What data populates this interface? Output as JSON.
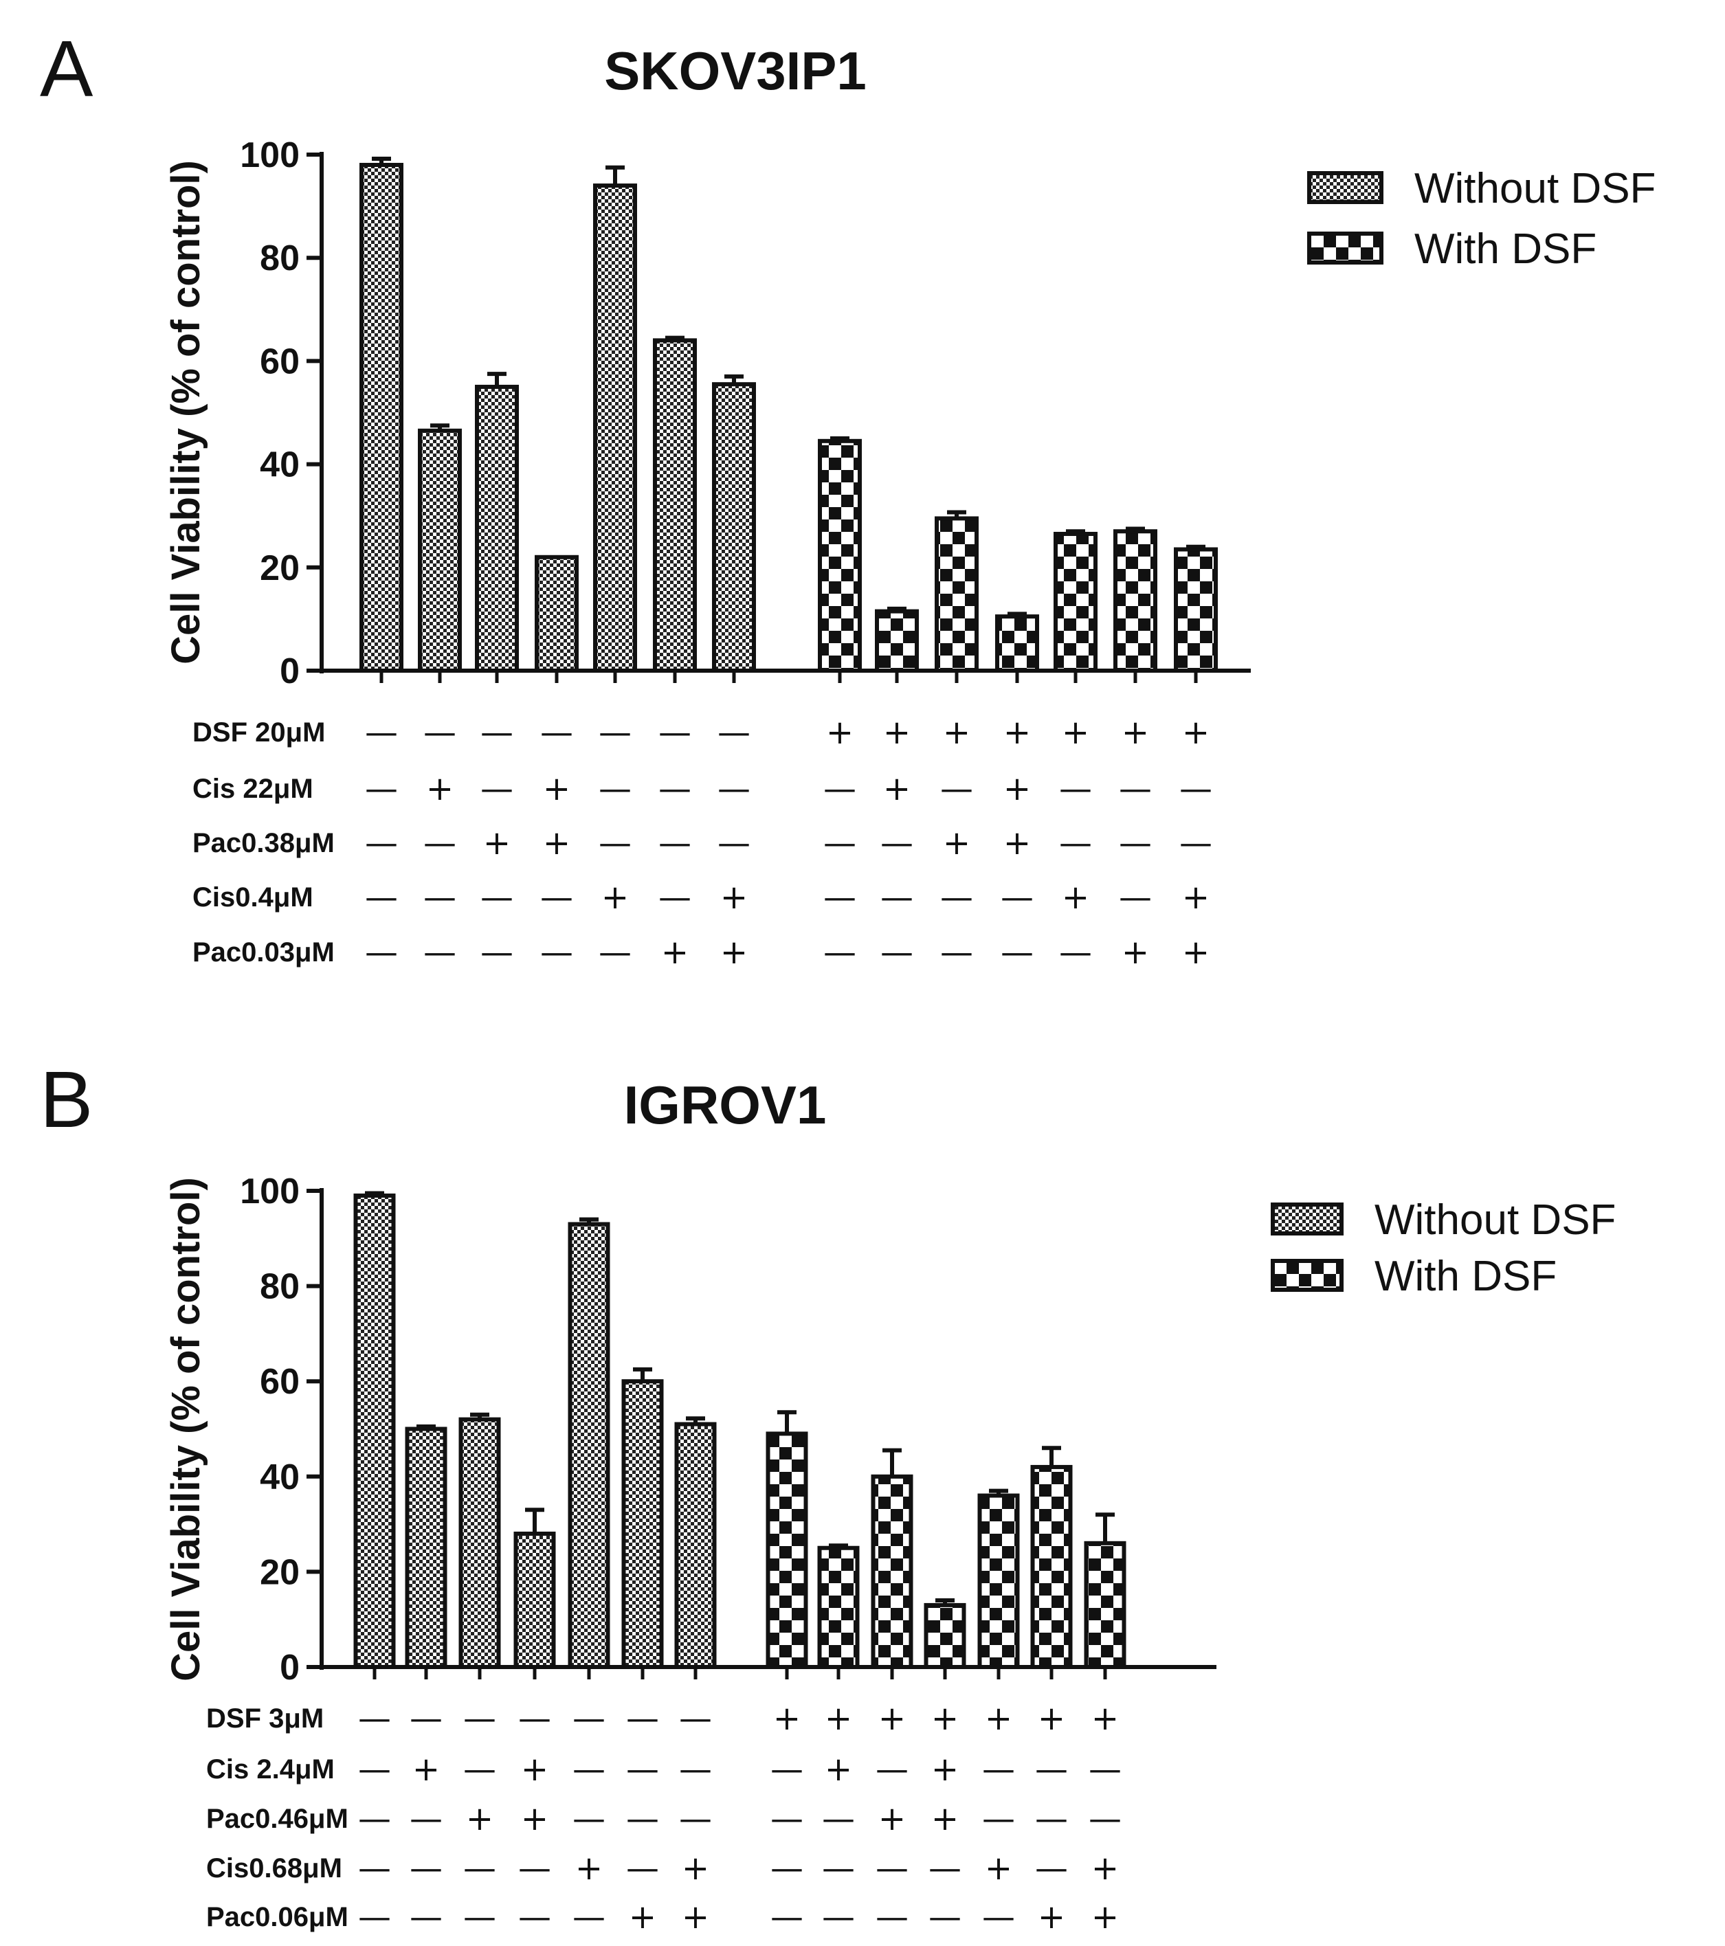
{
  "chart_data": [
    {
      "type": "bar",
      "panel": "A",
      "title": "SKOV3IP1",
      "ylabel": "Cell Viability (% of control)",
      "ylim": [
        0,
        100
      ],
      "yticks": [
        0,
        20,
        40,
        60,
        80,
        100
      ],
      "legend": {
        "placement": "top-right",
        "entries": [
          "Without DSF",
          "With DSF"
        ]
      },
      "series": [
        {
          "name": "Without DSF",
          "values": [
            98,
            46.5,
            55,
            22,
            94,
            64,
            55.5
          ],
          "errors": [
            1.2,
            1,
            2.5,
            0,
            3.5,
            0.5,
            1.5
          ]
        },
        {
          "name": "With DSF",
          "values": [
            44.5,
            11.5,
            29.5,
            10.5,
            26.5,
            27,
            23.5
          ],
          "errors": [
            0.5,
            0.5,
            1.2,
            0.5,
            0.5,
            0.5,
            0.5
          ]
        }
      ],
      "treatment_table": [
        {
          "label": "DSF 20μM",
          "signs": [
            "—",
            "—",
            "—",
            "—",
            "—",
            "—",
            "—",
            "+",
            "+",
            "+",
            "+",
            "+",
            "+",
            "+"
          ]
        },
        {
          "label": "Cis 22μM",
          "signs": [
            "—",
            "+",
            "—",
            "+",
            "—",
            "—",
            "—",
            "—",
            "+",
            "—",
            "+",
            "—",
            "—",
            "—"
          ]
        },
        {
          "label": "Pac0.38μM",
          "signs": [
            "—",
            "—",
            "+",
            "+",
            "—",
            "—",
            "—",
            "—",
            "—",
            "+",
            "+",
            "—",
            "—",
            "—"
          ]
        },
        {
          "label": "Cis0.4μM",
          "signs": [
            "—",
            "—",
            "—",
            "—",
            "+",
            "—",
            "+",
            "—",
            "—",
            "—",
            "—",
            "+",
            "—",
            "+"
          ]
        },
        {
          "label": "Pac0.03μM",
          "signs": [
            "—",
            "—",
            "—",
            "—",
            "—",
            "+",
            "+",
            "—",
            "—",
            "—",
            "—",
            "—",
            "+",
            "+"
          ]
        }
      ]
    },
    {
      "type": "bar",
      "panel": "B",
      "title": "IGROV1",
      "ylabel": "Cell Viability (% of control)",
      "ylim": [
        0,
        100
      ],
      "yticks": [
        0,
        20,
        40,
        60,
        80,
        100
      ],
      "legend": {
        "placement": "top-right",
        "entries": [
          "Without DSF",
          "With DSF"
        ]
      },
      "series": [
        {
          "name": "Without DSF",
          "values": [
            99,
            50,
            52,
            28,
            93,
            60,
            51
          ],
          "errors": [
            0.5,
            0.5,
            1,
            5,
            1,
            2.5,
            1.2
          ]
        },
        {
          "name": "With DSF",
          "values": [
            49,
            25,
            40,
            13,
            36,
            42,
            26
          ],
          "errors": [
            4.5,
            0.5,
            5.5,
            1,
            1,
            4,
            6
          ]
        }
      ],
      "treatment_table": [
        {
          "label": "DSF 3μM",
          "signs": [
            "—",
            "—",
            "—",
            "—",
            "—",
            "—",
            "—",
            "+",
            "+",
            "+",
            "+",
            "+",
            "+",
            "+"
          ]
        },
        {
          "label": "Cis 2.4μM",
          "signs": [
            "—",
            "+",
            "—",
            "+",
            "—",
            "—",
            "—",
            "—",
            "+",
            "—",
            "+",
            "—",
            "—",
            "—"
          ]
        },
        {
          "label": "Pac0.46μM",
          "signs": [
            "—",
            "—",
            "+",
            "+",
            "—",
            "—",
            "—",
            "—",
            "—",
            "+",
            "+",
            "—",
            "—",
            "—"
          ]
        },
        {
          "label": "Cis0.68μM",
          "signs": [
            "—",
            "—",
            "—",
            "—",
            "+",
            "—",
            "+",
            "—",
            "—",
            "—",
            "—",
            "+",
            "—",
            "+"
          ]
        },
        {
          "label": "Pac0.06μM",
          "signs": [
            "—",
            "—",
            "—",
            "—",
            "—",
            "+",
            "+",
            "—",
            "—",
            "—",
            "—",
            "—",
            "+",
            "+"
          ]
        }
      ]
    }
  ]
}
